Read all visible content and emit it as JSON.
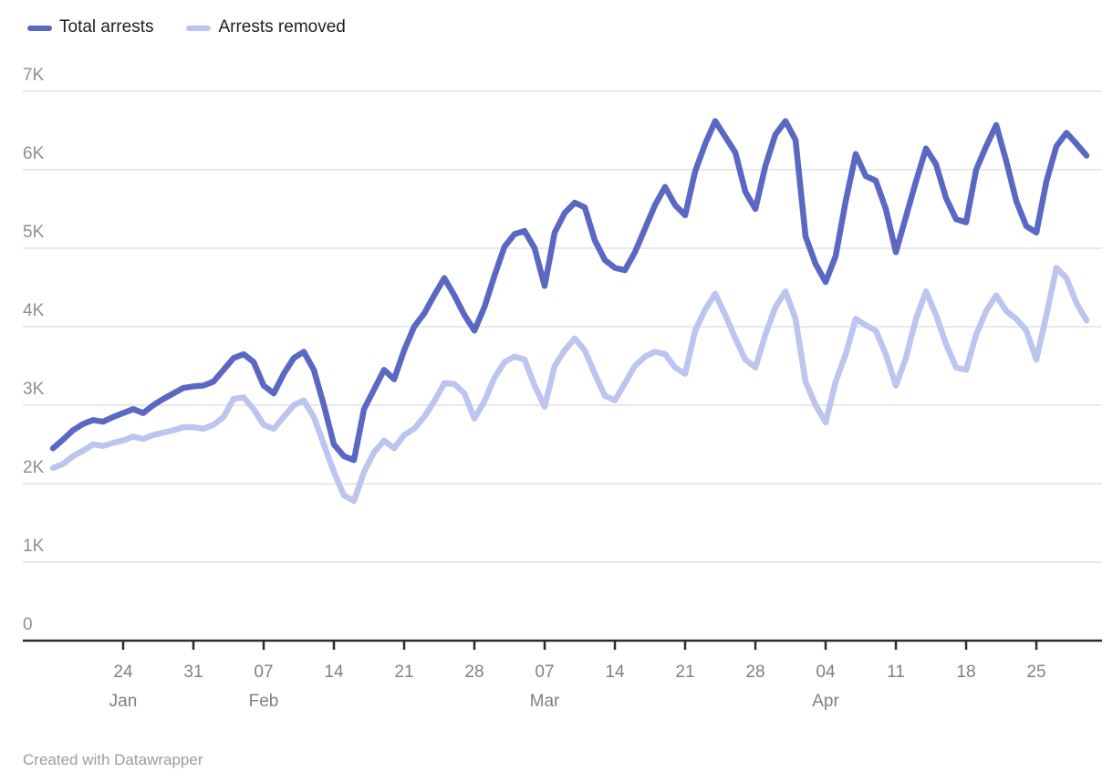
{
  "legend": {
    "items": [
      {
        "label": "Total arrests"
      },
      {
        "label": "Arrests removed"
      }
    ]
  },
  "footer": {
    "text": "Created with Datawrapper"
  },
  "style": {
    "series_dark": "#5a68c4",
    "series_light": "#bcc5ef",
    "grid_color": "#dcdcdc",
    "axis_color": "#2b2b2b",
    "y_label_color": "#8f8f8f",
    "x_label_color": "#818181",
    "background": "#ffffff"
  },
  "chart_data": {
    "type": "line",
    "title": "",
    "xlabel": "",
    "ylabel": "",
    "ylim": [
      0,
      7000
    ],
    "grid": "horizontal",
    "legend_position": "top-left",
    "y_ticks": [
      "0",
      "1K",
      "2K",
      "3K",
      "4K",
      "5K",
      "6K",
      "7K"
    ],
    "x": [
      "Jan 17",
      "Jan 18",
      "Jan 19",
      "Jan 20",
      "Jan 21",
      "Jan 22",
      "Jan 23",
      "Jan 24",
      "Jan 25",
      "Jan 26",
      "Jan 27",
      "Jan 28",
      "Jan 29",
      "Jan 30",
      "Jan 31",
      "Feb 01",
      "Feb 02",
      "Feb 03",
      "Feb 04",
      "Feb 05",
      "Feb 06",
      "Feb 07",
      "Feb 08",
      "Feb 09",
      "Feb 10",
      "Feb 11",
      "Feb 12",
      "Feb 13",
      "Feb 14",
      "Feb 15",
      "Feb 16",
      "Feb 17",
      "Feb 18",
      "Feb 19",
      "Feb 20",
      "Feb 21",
      "Feb 22",
      "Feb 23",
      "Feb 24",
      "Feb 25",
      "Feb 26",
      "Feb 27",
      "Feb 28",
      "Mar 01",
      "Mar 02",
      "Mar 03",
      "Mar 04",
      "Mar 05",
      "Mar 06",
      "Mar 07",
      "Mar 08",
      "Mar 09",
      "Mar 10",
      "Mar 11",
      "Mar 12",
      "Mar 13",
      "Mar 14",
      "Mar 15",
      "Mar 16",
      "Mar 17",
      "Mar 18",
      "Mar 19",
      "Mar 20",
      "Mar 21",
      "Mar 22",
      "Mar 23",
      "Mar 24",
      "Mar 25",
      "Mar 26",
      "Mar 27",
      "Mar 28",
      "Mar 29",
      "Mar 30",
      "Mar 31",
      "Apr 01",
      "Apr 02",
      "Apr 03",
      "Apr 04",
      "Apr 05",
      "Apr 06",
      "Apr 07",
      "Apr 08",
      "Apr 09",
      "Apr 10",
      "Apr 11",
      "Apr 12",
      "Apr 13",
      "Apr 14",
      "Apr 15",
      "Apr 16",
      "Apr 17",
      "Apr 18",
      "Apr 19",
      "Apr 20",
      "Apr 21",
      "Apr 22",
      "Apr 23",
      "Apr 24",
      "Apr 25",
      "Apr 26",
      "Apr 27",
      "Apr 28",
      "Apr 29",
      "Apr 30"
    ],
    "x_ticks": [
      {
        "date": "Jan 24",
        "label": "24",
        "month": "Jan"
      },
      {
        "date": "Jan 31",
        "label": "31"
      },
      {
        "date": "Feb 07",
        "label": "07",
        "month": "Feb"
      },
      {
        "date": "Feb 14",
        "label": "14"
      },
      {
        "date": "Feb 21",
        "label": "21"
      },
      {
        "date": "Feb 28",
        "label": "28"
      },
      {
        "date": "Mar 07",
        "label": "07",
        "month": "Mar"
      },
      {
        "date": "Mar 14",
        "label": "14"
      },
      {
        "date": "Mar 21",
        "label": "21"
      },
      {
        "date": "Mar 28",
        "label": "28"
      },
      {
        "date": "Apr 04",
        "label": "04",
        "month": "Apr"
      },
      {
        "date": "Apr 11",
        "label": "11"
      },
      {
        "date": "Apr 18",
        "label": "18"
      },
      {
        "date": "Apr 25",
        "label": "25"
      }
    ],
    "series": [
      {
        "name": "Total arrests",
        "color": "#5a68c4",
        "values": [
          2450,
          2560,
          2680,
          2760,
          2810,
          2790,
          2850,
          2900,
          2950,
          2900,
          3000,
          3080,
          3150,
          3220,
          3240,
          3250,
          3300,
          3450,
          3600,
          3650,
          3550,
          3250,
          3150,
          3400,
          3600,
          3680,
          3450,
          3000,
          2500,
          2350,
          2300,
          2950,
          3200,
          3450,
          3330,
          3700,
          4000,
          4170,
          4400,
          4620,
          4400,
          4150,
          3950,
          4250,
          4650,
          5020,
          5180,
          5220,
          5000,
          4520,
          5200,
          5450,
          5580,
          5520,
          5100,
          4850,
          4750,
          4720,
          4950,
          5250,
          5550,
          5780,
          5550,
          5420,
          5980,
          6330,
          6620,
          6420,
          6220,
          5720,
          5500,
          6050,
          6450,
          6620,
          6380,
          5150,
          4800,
          4570,
          4900,
          5600,
          6200,
          5920,
          5860,
          5500,
          4950,
          5400,
          5850,
          6270,
          6070,
          5640,
          5370,
          5330,
          6000,
          6300,
          6570,
          6110,
          5600,
          5280,
          5200,
          5850,
          6300,
          6470,
          6330,
          6180
        ]
      },
      {
        "name": "Arrests removed",
        "color": "#bcc5ef",
        "values": [
          2200,
          2250,
          2350,
          2420,
          2500,
          2480,
          2520,
          2550,
          2600,
          2570,
          2620,
          2650,
          2680,
          2720,
          2720,
          2700,
          2750,
          2850,
          3080,
          3100,
          2950,
          2750,
          2700,
          2850,
          3000,
          3060,
          2850,
          2500,
          2150,
          1850,
          1780,
          2150,
          2400,
          2550,
          2450,
          2620,
          2700,
          2850,
          3050,
          3280,
          3270,
          3150,
          2830,
          3050,
          3350,
          3550,
          3620,
          3580,
          3250,
          2980,
          3500,
          3700,
          3850,
          3700,
          3400,
          3120,
          3060,
          3280,
          3500,
          3620,
          3680,
          3650,
          3480,
          3400,
          3950,
          4220,
          4420,
          4150,
          3850,
          3580,
          3480,
          3900,
          4250,
          4450,
          4100,
          3300,
          3000,
          2780,
          3300,
          3650,
          4100,
          4020,
          3950,
          3650,
          3250,
          3600,
          4100,
          4450,
          4150,
          3780,
          3480,
          3450,
          3900,
          4200,
          4400,
          4200,
          4100,
          3950,
          3580,
          4150,
          4750,
          4620,
          4300,
          4080
        ]
      }
    ]
  }
}
